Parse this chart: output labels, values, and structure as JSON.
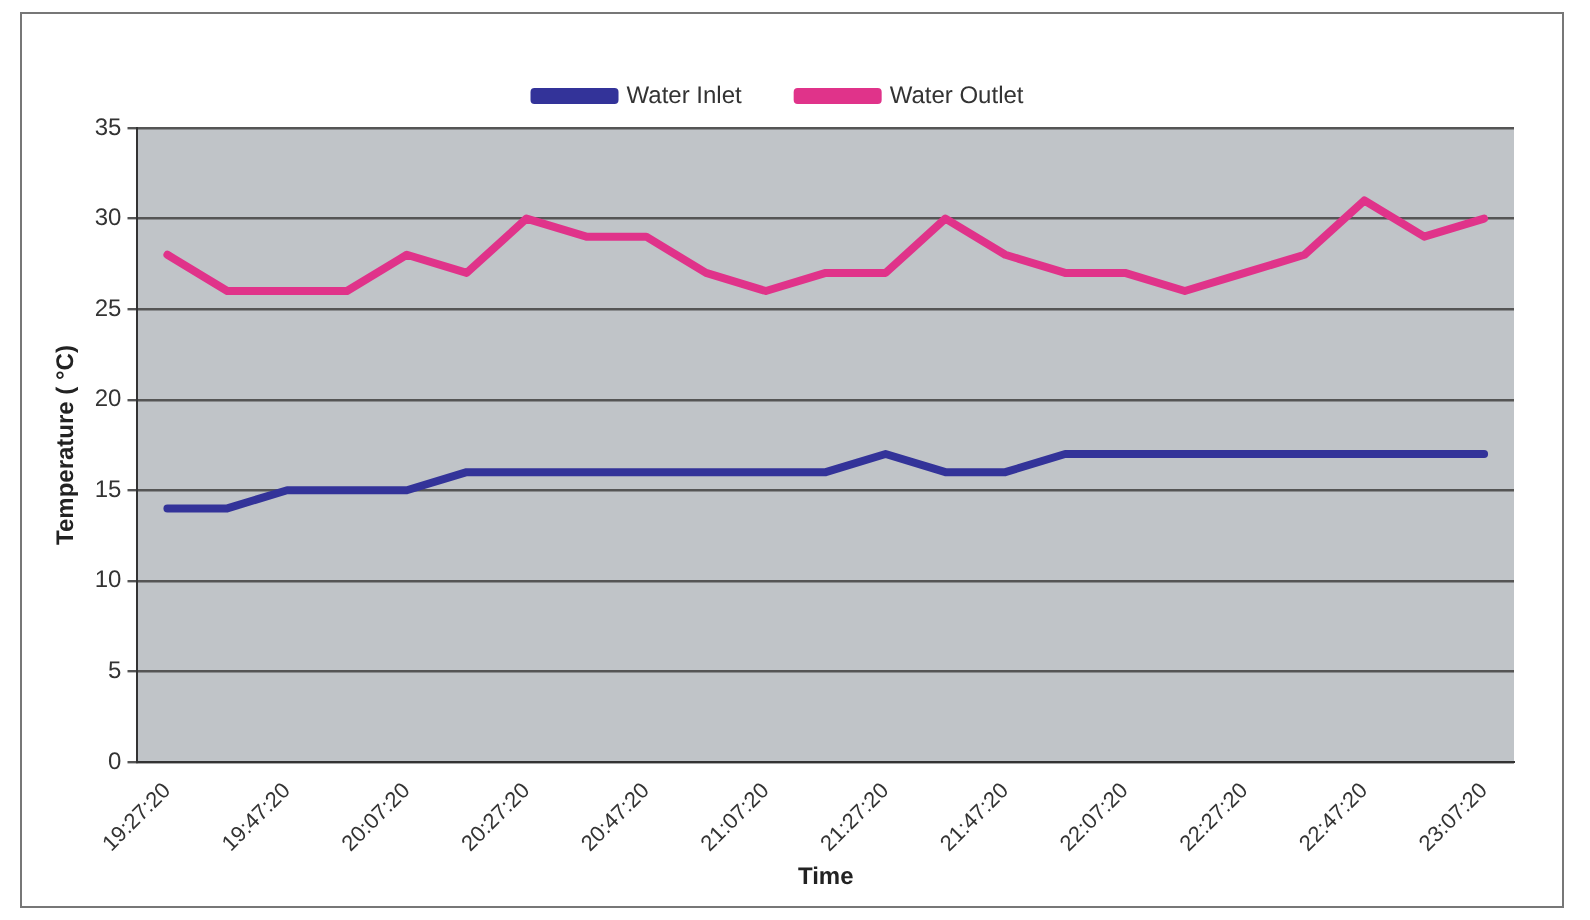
{
  "chart_data": {
    "type": "line",
    "xlabel": "Time",
    "ylabel": "Temperature ( °C)",
    "categories": [
      "19:27:20",
      null,
      "19:47:20",
      null,
      "20:07:20",
      null,
      "20:27:20",
      null,
      "20:47:20",
      null,
      "21:07:20",
      null,
      "21:27:20",
      null,
      "21:47:20",
      null,
      "22:07:20",
      null,
      "22:27:20",
      null,
      "22:47:20",
      null,
      "23:07:20"
    ],
    "series": [
      {
        "name": "Water Inlet",
        "color": "#333399",
        "values": [
          14,
          14,
          15,
          15,
          15,
          16,
          16,
          16,
          16,
          16,
          16,
          16,
          17,
          16,
          16,
          17,
          17,
          17,
          17,
          17,
          17,
          17,
          17
        ]
      },
      {
        "name": "Water Outlet",
        "color": "#e0338a",
        "values": [
          28,
          26,
          26,
          26,
          28,
          27,
          30,
          29,
          29,
          27,
          26,
          27,
          27,
          30,
          28,
          27,
          27,
          26,
          27,
          28,
          31,
          29,
          30
        ]
      }
    ],
    "ylim": [
      0,
      35
    ],
    "yticks": [
      0,
      5,
      10,
      15,
      20,
      25,
      30,
      35
    ],
    "grid": "y",
    "legend": "top",
    "marker": "none",
    "line_style": "solid"
  }
}
